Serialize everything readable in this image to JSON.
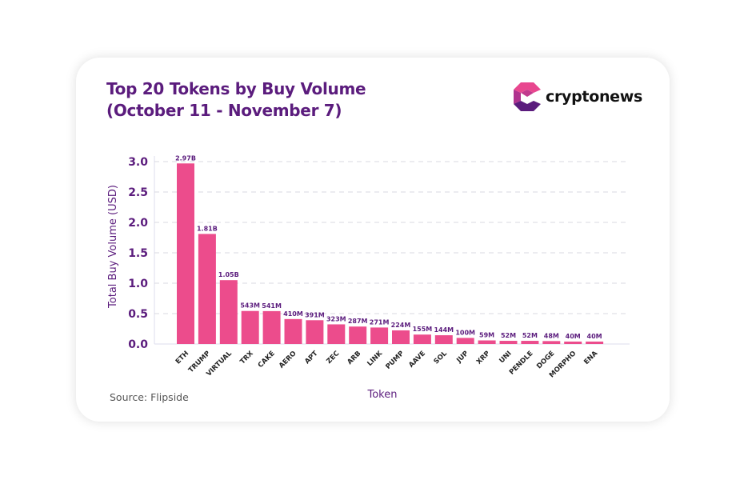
{
  "brand": {
    "name": "cryptonews",
    "colors": {
      "logo_pink": "#e8478f",
      "logo_purple": "#5b1c7d"
    }
  },
  "source": "Source: Flipside",
  "chart_data": {
    "type": "bar",
    "title": "Top 20 Tokens by Buy Volume",
    "subtitle": "(October 11 - November 7)",
    "xlabel": "Token",
    "ylabel": "Total Buy Volume (USD)",
    "ylim": [
      0,
      3.0
    ],
    "yticks": [
      "0.0",
      "0.5",
      "1.0",
      "1.5",
      "2.0",
      "2.5",
      "3.0"
    ],
    "grid": true,
    "bar_color": "#ec4c8c",
    "text_color": "#5b1c7d",
    "categories": [
      "ETH",
      "TRUMP",
      "VIRTUAL",
      "TRX",
      "CAKE",
      "AERO",
      "APT",
      "ZEC",
      "ARB",
      "LINK",
      "PUMP",
      "AAVE",
      "SOL",
      "JUP",
      "XRP",
      "UNI",
      "PENDLE",
      "DOGE",
      "MORPHO",
      "ENA"
    ],
    "values": [
      2.97,
      1.81,
      1.05,
      0.543,
      0.541,
      0.41,
      0.391,
      0.323,
      0.287,
      0.271,
      0.224,
      0.155,
      0.144,
      0.1,
      0.059,
      0.052,
      0.052,
      0.048,
      0.04,
      0.04
    ],
    "labels": [
      "2.97B",
      "1.81B",
      "1.05B",
      "543M",
      "541M",
      "410M",
      "391M",
      "323M",
      "287M",
      "271M",
      "224M",
      "155M",
      "144M",
      "100M",
      "59M",
      "52M",
      "52M",
      "48M",
      "40M",
      "40M"
    ]
  }
}
